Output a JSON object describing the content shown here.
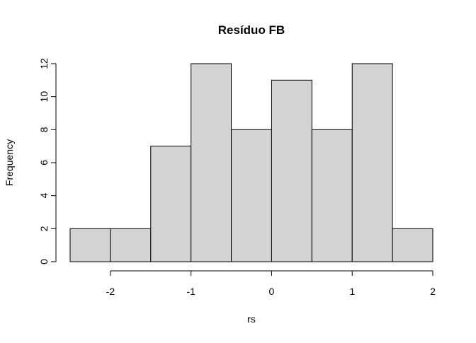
{
  "chart_data": {
    "type": "bar",
    "subtype": "histogram",
    "title": "Resíduo  FB",
    "xlabel": "rs",
    "ylabel": "Frequency",
    "bin_edges": [
      -2.5,
      -2.0,
      -1.5,
      -1.0,
      -0.5,
      0.0,
      0.5,
      1.0,
      1.5,
      2.0
    ],
    "values": [
      2,
      2,
      7,
      12,
      8,
      11,
      8,
      12,
      2
    ],
    "xlim": [
      -2.5,
      2.0
    ],
    "ylim": [
      0,
      12
    ],
    "x_ticks": [
      -2,
      -1,
      0,
      1,
      2
    ],
    "y_ticks": [
      0,
      2,
      4,
      6,
      8,
      10,
      12
    ],
    "bar_fill": "#d3d3d3",
    "bar_stroke": "#000000",
    "grid": false,
    "legend": "none"
  }
}
